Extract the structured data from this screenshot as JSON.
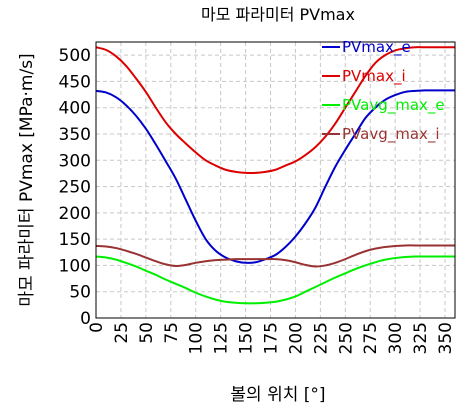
{
  "chart_data": {
    "type": "line",
    "title": "마모 파라미터 PVmax",
    "xlabel": "볼의 위치 [°]",
    "ylabel": "마모 파라미터 PVmax [MPa·m/s]",
    "xlim": [
      0,
      360
    ],
    "ylim": [
      0,
      525
    ],
    "grid": true,
    "legend_position": "top-right",
    "x_ticks": [
      "0",
      "25",
      "50",
      "75",
      "100",
      "125",
      "150",
      "175",
      "200",
      "225",
      "250",
      "275",
      "300",
      "325",
      "350"
    ],
    "y_ticks": [
      "0",
      "50",
      "100",
      "150",
      "200",
      "250",
      "300",
      "350",
      "400",
      "450",
      "500"
    ],
    "x": [
      0,
      10,
      20,
      30,
      40,
      50,
      60,
      70,
      80,
      90,
      100,
      110,
      120,
      130,
      140,
      150,
      160,
      170,
      180,
      190,
      200,
      210,
      220,
      230,
      240,
      250,
      260,
      270,
      280,
      290,
      300,
      310,
      320,
      330,
      340,
      350,
      360
    ],
    "series": [
      {
        "name": "PVmax_e",
        "color": "#0000cc",
        "values": [
          432,
          429,
          420,
          405,
          385,
          360,
          330,
          298,
          265,
          225,
          185,
          150,
          128,
          115,
          108,
          105,
          106,
          112,
          120,
          135,
          155,
          180,
          210,
          250,
          288,
          320,
          350,
          380,
          400,
          415,
          424,
          430,
          432,
          433,
          433,
          433,
          433
        ]
      },
      {
        "name": "PVmax_i",
        "color": "#dd0000",
        "values": [
          515,
          510,
          498,
          480,
          456,
          430,
          400,
          372,
          350,
          332,
          315,
          300,
          290,
          282,
          278,
          276,
          276,
          278,
          282,
          290,
          298,
          310,
          325,
          345,
          370,
          400,
          430,
          460,
          485,
          500,
          509,
          513,
          515,
          515,
          515,
          515,
          515
        ]
      },
      {
        "name": "PVavg_max_e",
        "color": "#00ee00",
        "values": [
          117,
          115,
          111,
          105,
          98,
          90,
          82,
          73,
          65,
          57,
          48,
          41,
          35,
          31,
          29,
          28,
          28,
          29,
          31,
          35,
          41,
          50,
          59,
          68,
          77,
          85,
          93,
          100,
          106,
          111,
          114,
          116,
          117,
          117,
          117,
          117,
          117
        ]
      },
      {
        "name": "PVavg_max_i",
        "color": "#993333",
        "values": [
          137,
          136,
          133,
          128,
          122,
          115,
          108,
          102,
          99,
          101,
          105,
          108,
          110,
          111,
          112,
          112,
          112,
          112,
          112,
          110,
          106,
          101,
          98,
          100,
          105,
          112,
          120,
          127,
          132,
          135,
          137,
          138,
          138,
          138,
          138,
          138,
          138
        ]
      }
    ]
  }
}
